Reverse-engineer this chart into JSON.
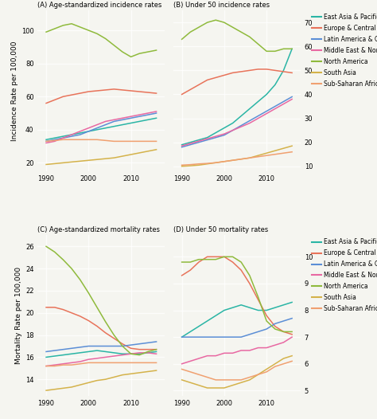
{
  "years": [
    1990,
    1992,
    1994,
    1996,
    1998,
    2000,
    2002,
    2004,
    2006,
    2008,
    2010,
    2012,
    2014,
    2016
  ],
  "regions": [
    "East Asia & Pacific",
    "Europe & Central Asia",
    "Latin America & Caribbean",
    "Middle East & North Africa",
    "North America",
    "South Asia",
    "Sub-Saharan Africa"
  ],
  "colors": [
    "#2ab5a5",
    "#e8735a",
    "#5b8ed6",
    "#e868a2",
    "#8fba3c",
    "#d4b24a",
    "#f0a070"
  ],
  "panel_A": {
    "title": "(A) Age-standardized incidence rates",
    "ylim": [
      15,
      112
    ],
    "yticks": [
      20,
      40,
      60,
      80,
      100
    ],
    "data": {
      "East Asia & Pacific": [
        34,
        35,
        36,
        37,
        38,
        39,
        40,
        41,
        42,
        43,
        44,
        45,
        46,
        47
      ],
      "Europe & Central Asia": [
        56,
        58,
        60,
        61,
        62,
        63,
        63.5,
        64,
        64.5,
        64,
        63.5,
        63,
        62.5,
        62
      ],
      "Latin America & Caribbean": [
        33,
        34,
        35,
        36,
        37,
        39,
        41,
        43,
        45,
        46,
        47,
        48,
        49,
        50
      ],
      "Middle East & North Africa": [
        32,
        33,
        35,
        37,
        39,
        41,
        43,
        45,
        46,
        47,
        48,
        49,
        50,
        51
      ],
      "North America": [
        99,
        101,
        103,
        104,
        102,
        100,
        98,
        95,
        91,
        87,
        84,
        86,
        87,
        88
      ],
      "South Asia": [
        19,
        19.5,
        20,
        20.5,
        21,
        21.5,
        22,
        22.5,
        23,
        24,
        25,
        26,
        27,
        28
      ],
      "Sub-Saharan Africa": [
        33,
        33.5,
        34,
        34,
        34,
        34,
        34,
        33.5,
        33,
        33,
        33,
        33,
        33,
        33
      ]
    }
  },
  "panel_B": {
    "title": "(B) Under 50 incidence rates",
    "ylim": [
      8,
      75
    ],
    "yticks": [
      10,
      20,
      30,
      40,
      50,
      60,
      70
    ],
    "data": {
      "East Asia & Pacific": [
        19,
        20,
        21,
        22,
        24,
        26,
        28,
        31,
        34,
        37,
        40,
        44,
        50,
        59
      ],
      "Europe & Central Asia": [
        40,
        42,
        44,
        46,
        47,
        48,
        49,
        49.5,
        50,
        50.5,
        50.5,
        50,
        49.5,
        49
      ],
      "Latin America & Caribbean": [
        18,
        19,
        20,
        21,
        22,
        23,
        25,
        27,
        29,
        31,
        33,
        35,
        37,
        39
      ],
      "Middle East & North Africa": [
        18.5,
        19.5,
        20.5,
        21.5,
        22.5,
        23.5,
        25,
        26.5,
        28,
        30,
        32,
        34,
        36,
        38
      ],
      "North America": [
        63,
        66,
        68,
        70,
        71,
        70,
        68,
        66,
        64,
        61,
        58,
        58,
        59,
        59
      ],
      "South Asia": [
        10,
        10.2,
        10.5,
        11,
        11.5,
        12,
        12.5,
        13,
        13.5,
        14.5,
        15.5,
        16.5,
        17.5,
        18.5
      ],
      "Sub-Saharan Africa": [
        10.5,
        10.7,
        11,
        11.2,
        11.5,
        12,
        12.5,
        13,
        13.5,
        14,
        14.5,
        15,
        15.5,
        16
      ]
    }
  },
  "panel_C": {
    "title": "(C) Age-standardized mortality rates",
    "ylim": [
      12.5,
      27
    ],
    "yticks": [
      14,
      16,
      18,
      20,
      22,
      24,
      26
    ],
    "data": {
      "East Asia & Pacific": [
        16.0,
        16.1,
        16.2,
        16.3,
        16.4,
        16.5,
        16.6,
        16.5,
        16.4,
        16.3,
        16.3,
        16.3,
        16.4,
        16.5
      ],
      "Europe & Central Asia": [
        20.5,
        20.5,
        20.3,
        20.0,
        19.7,
        19.3,
        18.8,
        18.2,
        17.7,
        17.2,
        16.8,
        16.7,
        16.7,
        16.7
      ],
      "Latin America & Caribbean": [
        16.5,
        16.6,
        16.7,
        16.8,
        16.9,
        17.0,
        17.0,
        17.0,
        17.0,
        17.0,
        17.1,
        17.2,
        17.3,
        17.4
      ],
      "Middle East & North Africa": [
        15.2,
        15.3,
        15.4,
        15.5,
        15.6,
        15.8,
        15.9,
        16.0,
        16.1,
        16.2,
        16.3,
        16.4,
        16.4,
        16.3
      ],
      "North America": [
        26.0,
        25.5,
        24.8,
        24.0,
        23.0,
        21.8,
        20.5,
        19.2,
        18.0,
        17.0,
        16.3,
        16.2,
        16.5,
        16.7
      ],
      "South Asia": [
        13.0,
        13.1,
        13.2,
        13.3,
        13.5,
        13.7,
        13.9,
        14.0,
        14.2,
        14.4,
        14.5,
        14.6,
        14.7,
        14.8
      ],
      "Sub-Saharan Africa": [
        15.2,
        15.2,
        15.3,
        15.3,
        15.4,
        15.5,
        15.5,
        15.5,
        15.5,
        15.5,
        15.5,
        15.5,
        15.5,
        15.5
      ]
    }
  },
  "panel_D": {
    "title": "(D) Under 50 mortality rates",
    "ylim": [
      4.8,
      10.8
    ],
    "yticks": [
      5,
      6,
      7,
      8,
      9,
      10
    ],
    "data": {
      "East Asia & Pacific": [
        7.0,
        7.2,
        7.4,
        7.6,
        7.8,
        8.0,
        8.1,
        8.2,
        8.1,
        8.0,
        8.0,
        8.1,
        8.2,
        8.3
      ],
      "Europe & Central Asia": [
        9.3,
        9.5,
        9.8,
        10.0,
        10.0,
        10.0,
        9.8,
        9.5,
        9.0,
        8.4,
        7.8,
        7.4,
        7.2,
        7.1
      ],
      "Latin America & Caribbean": [
        7.0,
        7.0,
        7.0,
        7.0,
        7.0,
        7.0,
        7.0,
        7.0,
        7.1,
        7.2,
        7.3,
        7.5,
        7.6,
        7.7
      ],
      "Middle East & North Africa": [
        6.0,
        6.1,
        6.2,
        6.3,
        6.3,
        6.4,
        6.4,
        6.5,
        6.5,
        6.6,
        6.6,
        6.7,
        6.8,
        7.0
      ],
      "North America": [
        9.8,
        9.8,
        9.9,
        9.9,
        9.9,
        10.0,
        10.0,
        9.8,
        9.3,
        8.5,
        7.6,
        7.3,
        7.2,
        7.2
      ],
      "South Asia": [
        5.4,
        5.3,
        5.2,
        5.1,
        5.1,
        5.1,
        5.2,
        5.3,
        5.4,
        5.6,
        5.8,
        6.0,
        6.2,
        6.3
      ],
      "Sub-Saharan Africa": [
        5.8,
        5.7,
        5.6,
        5.5,
        5.4,
        5.4,
        5.4,
        5.4,
        5.5,
        5.6,
        5.7,
        5.9,
        6.0,
        6.1
      ]
    }
  },
  "ylabel_top": "Incidence Rate per 100,000",
  "ylabel_bottom": "Mortality Rate per 100,000",
  "bg_color": "#f5f5f0"
}
